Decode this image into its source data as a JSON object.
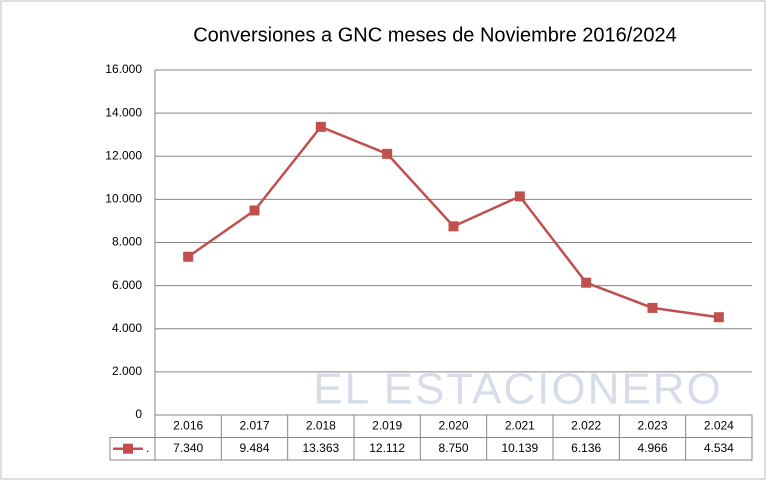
{
  "chart_data": {
    "type": "line",
    "title": "Conversiones a GNC  meses de Noviembre 2016/2024",
    "watermark": "EL ESTACIONERO",
    "categories": [
      "2.016",
      "2.017",
      "2.018",
      "2.019",
      "2.020",
      "2.021",
      "2.022",
      "2.023",
      "2.024"
    ],
    "series": [
      {
        "name": ".",
        "color": "#c0504d",
        "values": [
          7340,
          9484,
          13363,
          12112,
          8750,
          10139,
          6136,
          4966,
          4534
        ],
        "value_labels": [
          "7.340",
          "9.484",
          "13.363",
          "12.112",
          "8.750",
          "10.139",
          "6.136",
          "4.966",
          "4.534"
        ]
      }
    ],
    "ylim": [
      0,
      16000
    ],
    "yticks": [
      0,
      {
        "value": 2000,
        "label": "2.000"
      },
      {
        "value": 4000,
        "label": "4.000"
      },
      {
        "value": 6000,
        "label": "6.000"
      },
      {
        "value": 8000,
        "label": "8.000"
      },
      {
        "value": 10000,
        "label": "10.000"
      },
      {
        "value": 12000,
        "label": "12.000"
      },
      {
        "value": 14000,
        "label": "14.000"
      },
      {
        "value": 16000,
        "label": "16.000"
      }
    ],
    "grid": true
  }
}
